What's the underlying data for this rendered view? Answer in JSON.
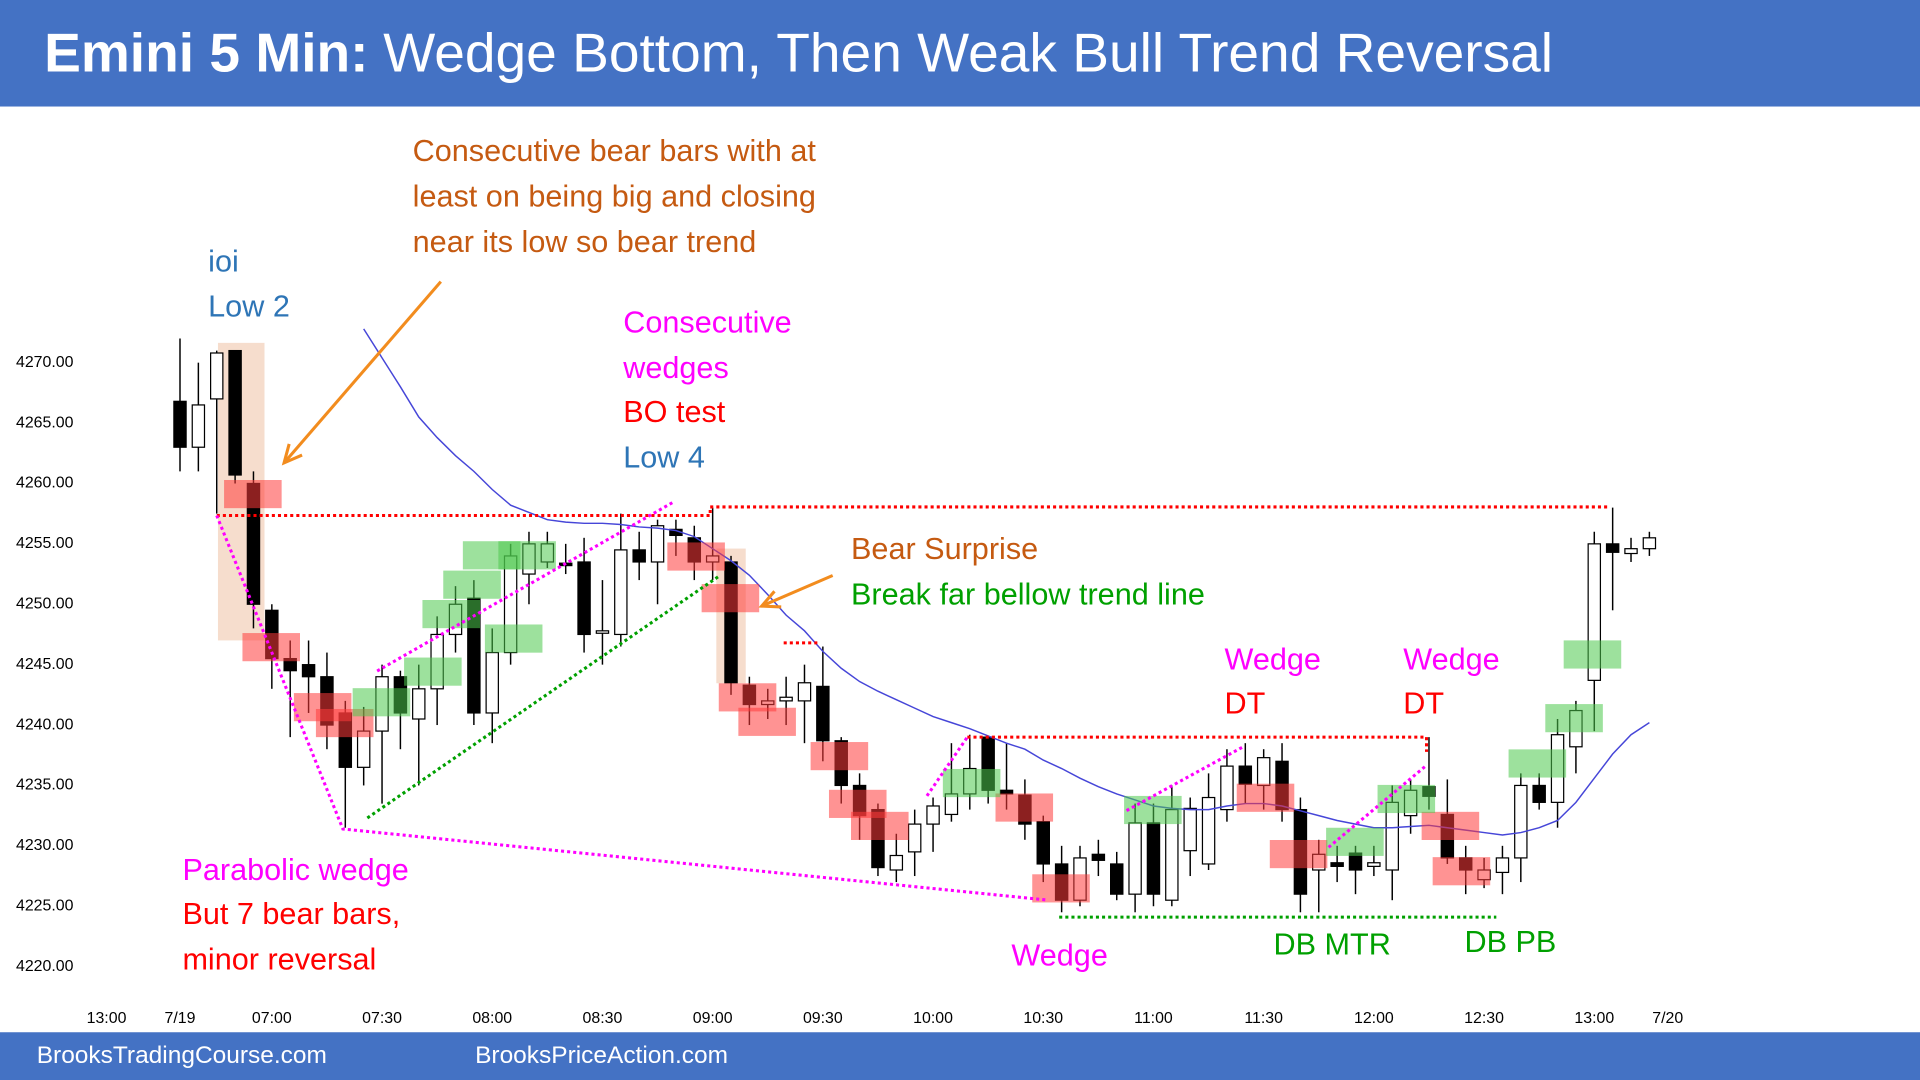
{
  "chart_data": {
    "type": "candlestick",
    "title_bold": "Emini 5 Min:",
    "title": "Wedge Bottom, Then Weak Bull Trend Reversal",
    "categories": [
      "13:00",
      null,
      null,
      null,
      "7/19",
      null,
      null,
      null,
      null,
      "07:00",
      null,
      null,
      null,
      null,
      null,
      "07:30",
      null,
      null,
      null,
      null,
      null,
      "08:00",
      null,
      null,
      null,
      null,
      null,
      "08:30",
      null,
      null,
      null,
      null,
      null,
      "09:00",
      null,
      null,
      null,
      null,
      null,
      "09:30",
      null,
      null,
      null,
      null,
      null,
      "10:00",
      null,
      null,
      null,
      null,
      null,
      "10:30",
      null,
      null,
      null,
      null,
      null,
      "11:00",
      null,
      null,
      null,
      null,
      null,
      "11:30",
      null,
      null,
      null,
      null,
      null,
      "12:00",
      null,
      null,
      null,
      null,
      null,
      "12:30",
      null,
      null,
      null,
      null,
      null,
      "13:00",
      null,
      null,
      null,
      "7/20"
    ],
    "open": [
      null,
      null,
      null,
      null,
      4266.8,
      4263,
      4267,
      4271,
      4260,
      4249.5,
      4245.5,
      4245,
      4244,
      4241,
      4236.5,
      4239.5,
      4244,
      4240.5,
      4243,
      4247.5,
      4250.5,
      4241,
      4246,
      4252.5,
      4253.5,
      4253.4,
      4253.5,
      4247.6,
      4247.5,
      4254.5,
      4253.5,
      4256.2,
      4255.5,
      4253.5,
      4253.5,
      4243.3,
      4241.7,
      4242,
      4242,
      4243.2,
      4238.7,
      4235,
      4233,
      4228,
      4229.5,
      4231.8,
      4232.6,
      4234.3,
      4239,
      4234.6,
      4234.2,
      4232,
      4228.5,
      4225.5,
      4229.3,
      4228.5,
      4226,
      4231.9,
      4225.5,
      4229.6,
      4228.5,
      4233,
      4236.6,
      4235,
      4237,
      4233,
      4228,
      4228.6,
      4229.4,
      4228.3,
      4228,
      4232.5,
      4234.9,
      4232.6,
      4229,
      4227.2,
      4227.8,
      4229,
      4235,
      4233.6,
      4238.2,
      4243.7,
      4255,
      4254.2,
      4254.6,
      null
    ],
    "high": [
      null,
      null,
      null,
      null,
      4272,
      4270,
      4271,
      4271,
      4261,
      4250,
      4247,
      4247,
      4246,
      4242,
      4241.5,
      4245,
      4244.5,
      4245,
      4249,
      4251.5,
      4252,
      4248,
      4255,
      4256,
      4256,
      4255,
      4255.5,
      4252,
      4257.5,
      4256,
      4257,
      4257,
      4256.5,
      4258,
      4254,
      4244,
      4243,
      4244,
      4245,
      4246.5,
      4239,
      4236,
      4233.5,
      4231,
      4233,
      4234,
      4238.5,
      4239.2,
      4239,
      4238.5,
      4235.5,
      4232.5,
      4230,
      4230,
      4230.5,
      4229.5,
      4233.5,
      4233.5,
      4235,
      4234,
      4236,
      4238,
      4238.5,
      4238,
      4238.5,
      4234,
      4230.5,
      4230,
      4230,
      4230,
      4235,
      4235.5,
      4239,
      4235.5,
      4230,
      4229,
      4230,
      4236,
      4236,
      4240.5,
      4242,
      4256,
      4258,
      4255.5,
      4256,
      null
    ],
    "low": [
      null,
      null,
      null,
      null,
      4261,
      4261,
      4257.5,
      4260,
      4248,
      4243,
      4239,
      4241,
      4238,
      4231.5,
      4235,
      4233.5,
      4238,
      4235,
      4240,
      4246,
      4240,
      4238.5,
      4245,
      4250,
      4253,
      4252.5,
      4246,
      4245,
      4246.5,
      4252,
      4250,
      4254,
      4252,
      4252,
      4242.5,
      4240,
      4240.5,
      4240,
      4238.5,
      4237,
      4233.5,
      4230.5,
      4227.5,
      4227,
      4227.5,
      4229.5,
      4232,
      4233,
      4233.5,
      4233,
      4230.5,
      4227,
      4224.5,
      4225,
      4227.5,
      4225.5,
      4224.5,
      4225,
      4225,
      4227.5,
      4228,
      4232,
      4233.5,
      4233,
      4232,
      4224.5,
      4224.5,
      4227,
      4226,
      4227.5,
      4225.5,
      4231,
      4233,
      4228.5,
      4226,
      4226.5,
      4226,
      4227,
      4233,
      4231.5,
      4236,
      4239.5,
      4249.5,
      4253.5,
      4254,
      null
    ],
    "close": [
      null,
      null,
      null,
      null,
      4263,
      4266.5,
      4270.8,
      4260.7,
      4250,
      4245.5,
      4244.5,
      4244,
      4240,
      4236.5,
      4239.5,
      4244,
      4241,
      4243,
      4247.5,
      4250,
      4241,
      4246,
      4254,
      4255,
      4255,
      4253.2,
      4247.5,
      4247.8,
      4254.5,
      4253.5,
      4256.5,
      4255.7,
      4253.5,
      4254,
      4243.5,
      4241.7,
      4242,
      4242.3,
      4243.5,
      4238.7,
      4235,
      4232.5,
      4228.2,
      4229.2,
      4231.8,
      4233.3,
      4234.3,
      4236.4,
      4234.6,
      4234.3,
      4231.8,
      4228.5,
      4225.5,
      4229,
      4228.8,
      4226,
      4231.9,
      4226,
      4233,
      4233.1,
      4234,
      4236.6,
      4235.1,
      4237.3,
      4233,
      4226,
      4229.3,
      4228.3,
      4228,
      4228.6,
      4233.6,
      4234.6,
      4234.1,
      4229,
      4228,
      4228,
      4229,
      4235,
      4233.6,
      4239.2,
      4241.2,
      4255,
      4254.3,
      4254.6,
      4255.5,
      null
    ],
    "up_color": "#ffffff",
    "down_color": "#000000",
    "moving_average": {
      "color": "#4646d8",
      "values": [
        null,
        null,
        null,
        null,
        null,
        null,
        null,
        null,
        null,
        null,
        null,
        null,
        null,
        null,
        4272.8,
        4270.4,
        4268.0,
        4265.5,
        4263.8,
        4262.3,
        4261.0,
        4259.5,
        4258.2,
        4257.6,
        4257.0,
        4256.8,
        4256.7,
        4256.7,
        4256.6,
        4256.4,
        4256.3,
        4256.1,
        4255.6,
        4254.6,
        4253.6,
        4252.4,
        4250.8,
        4249.1,
        4247.8,
        4246.1,
        4244.7,
        4243.6,
        4242.8,
        4242.1,
        4241.4,
        4240.7,
        4240.2,
        4239.7,
        4239.1,
        4238.5,
        4238.0,
        4237.1,
        4236.4,
        4235.6,
        4234.9,
        4234.3,
        4233.8,
        4233.3,
        4233.1,
        4233.0,
        4233.0,
        4233.3,
        4233.5,
        4233.5,
        4233.3,
        4232.9,
        4232.5,
        4232.1,
        4231.8,
        4231.5,
        4231.5,
        4231.6,
        4231.7,
        4231.5,
        4231.3,
        4231.1,
        4230.9,
        4231.1,
        4231.5,
        4232.1,
        4233.6,
        4235.6,
        4237.6,
        4239.2,
        4240.2,
        null
      ]
    },
    "ylim": [
      4216.9,
      4290.9
    ],
    "yticks": [
      {
        "value": 4220,
        "label": "4220.00"
      },
      {
        "value": 4225,
        "label": "4225.00"
      },
      {
        "value": 4230,
        "label": "4230.00"
      },
      {
        "value": 4235,
        "label": "4235.00"
      },
      {
        "value": 4240,
        "label": "4240.00"
      },
      {
        "value": 4245,
        "label": "4245.00"
      },
      {
        "value": 4250,
        "label": "4250.00"
      },
      {
        "value": 4255,
        "label": "4255.00"
      },
      {
        "value": 4260,
        "label": "4260.00"
      },
      {
        "value": 4265,
        "label": "4265.00"
      },
      {
        "value": 4270,
        "label": "4270.00"
      }
    ],
    "grid": false,
    "annotations": [
      {
        "text": "Consecutive bear bars with at",
        "color": "#c55a11"
      },
      {
        "text": "least on being big and closing",
        "color": "#c55a11"
      },
      {
        "text": "near its low so bear trend",
        "color": "#c55a11"
      },
      {
        "text": "ioi",
        "color": "#2e75b6"
      },
      {
        "text": "Low 2",
        "color": "#2e75b6"
      },
      {
        "text": "Consecutive",
        "color": "#ff00ff"
      },
      {
        "text": "wedges",
        "color": "#ff00ff"
      },
      {
        "text": "BO test",
        "color": "#ff0000"
      },
      {
        "text": "Low 4",
        "color": "#2e75b6"
      },
      {
        "text": "Bear Surprise",
        "color": "#c55a11"
      },
      {
        "text": "Break far bellow trend line",
        "color": "#00a000"
      },
      {
        "text": "Wedge",
        "color": "#ff00ff"
      },
      {
        "text": "DT",
        "color": "#ff0000"
      },
      {
        "text": "Wedge",
        "color": "#ff00ff"
      },
      {
        "text": "DT",
        "color": "#ff0000"
      },
      {
        "text": "Parabolic wedge",
        "color": "#ff00ff"
      },
      {
        "text": "But 7 bear bars,",
        "color": "#ff0000"
      },
      {
        "text": "minor reversal",
        "color": "#ff0000"
      },
      {
        "text": "Wedge",
        "color": "#ff00ff"
      },
      {
        "text": "DB MTR",
        "color": "#00a000"
      },
      {
        "text": "DB PB",
        "color": "#00a000"
      }
    ]
  },
  "footer": {
    "left": "BrooksTradingCourse.com",
    "right": "BrooksPriceAction.com"
  }
}
